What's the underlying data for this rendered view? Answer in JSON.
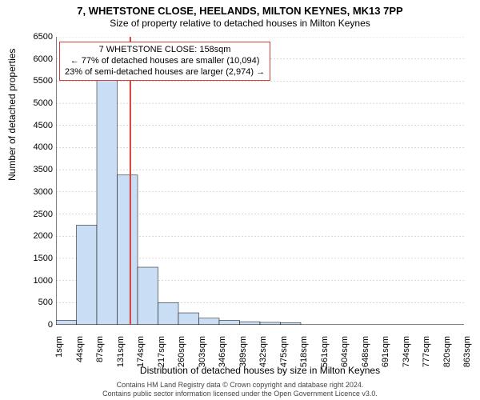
{
  "title": "7, WHETSTONE CLOSE, HEELANDS, MILTON KEYNES, MK13 7PP",
  "subtitle": "Size of property relative to detached houses in Milton Keynes",
  "y_axis_label": "Number of detached properties",
  "x_axis_label": "Distribution of detached houses by size in Milton Keynes",
  "chart": {
    "type": "histogram",
    "bar_fill": "#c9ddf4",
    "bar_stroke": "#000000",
    "background": "#ffffff",
    "grid_color": "#b0b0b0",
    "marker_color": "#d43f3a",
    "ylim": [
      0,
      6500
    ],
    "ytick_step": 500,
    "y_ticks": [
      0,
      500,
      1000,
      1500,
      2000,
      2500,
      3000,
      3500,
      4000,
      4500,
      5000,
      5500,
      6000,
      6500
    ],
    "x_labels": [
      "1sqm",
      "44sqm",
      "87sqm",
      "131sqm",
      "174sqm",
      "217sqm",
      "260sqm",
      "303sqm",
      "346sqm",
      "389sqm",
      "432sqm",
      "475sqm",
      "518sqm",
      "561sqm",
      "604sqm",
      "648sqm",
      "691sqm",
      "734sqm",
      "777sqm",
      "820sqm",
      "863sqm"
    ],
    "values": [
      100,
      2250,
      5550,
      3380,
      1300,
      500,
      270,
      150,
      100,
      70,
      55,
      50,
      0,
      0,
      0,
      0,
      0,
      0,
      0,
      0
    ],
    "marker_value": 158,
    "x_min": 1,
    "x_max": 863
  },
  "callout": {
    "line1": "7 WHETSTONE CLOSE: 158sqm",
    "line2": "← 77% of detached houses are smaller (10,094)",
    "line3": "23% of semi-detached houses are larger (2,974) →"
  },
  "footer": {
    "line1": "Contains HM Land Registry data © Crown copyright and database right 2024.",
    "line2": "Contains public sector information licensed under the Open Government Licence v3.0."
  },
  "fonts": {
    "title": 13,
    "subtitle": 12,
    "axis_label": 12,
    "tick": 11,
    "callout": 11,
    "footer": 9
  }
}
